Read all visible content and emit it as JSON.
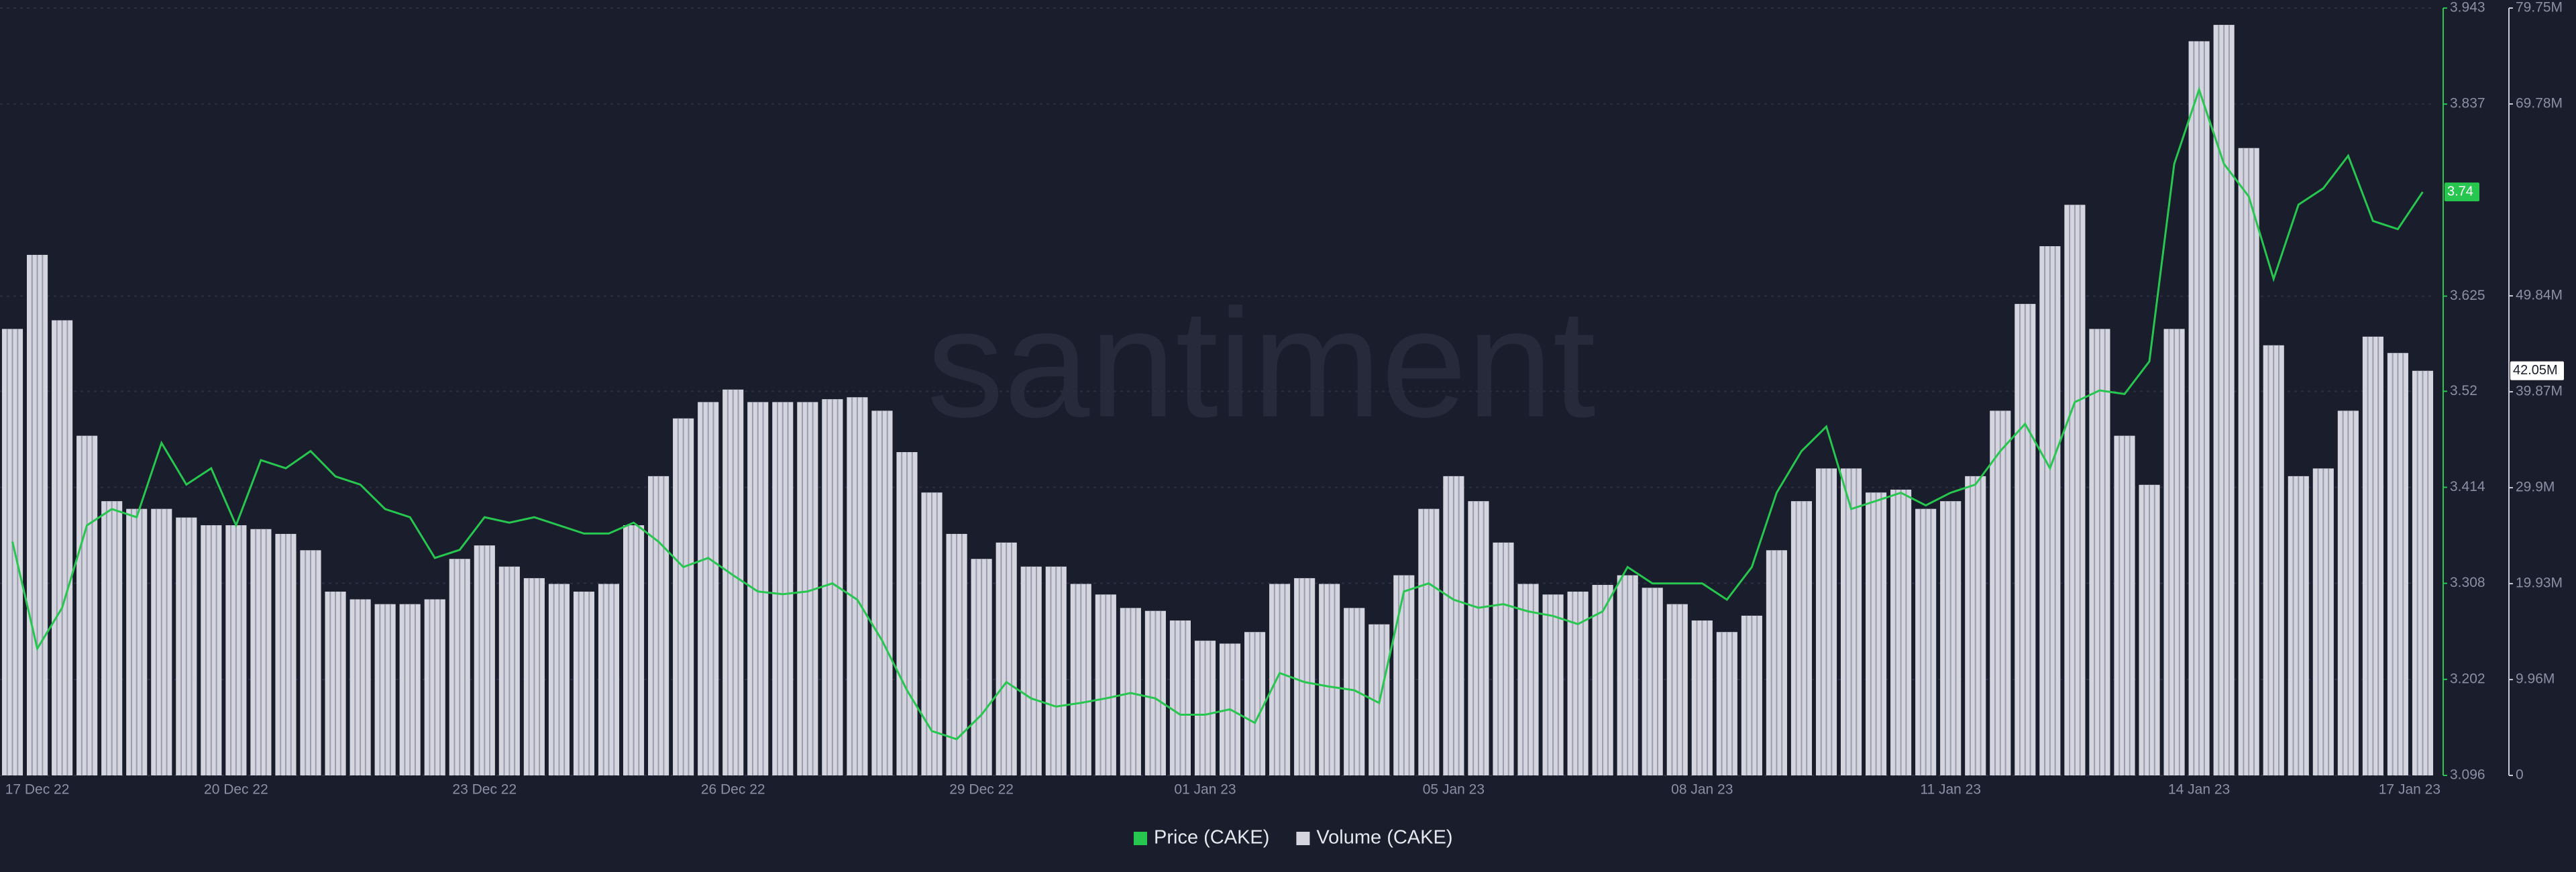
{
  "chart_data": {
    "type": "combo",
    "watermark": "santiment",
    "categories": [
      null,
      "17 Dec 22",
      null,
      null,
      null,
      null,
      null,
      null,
      null,
      "20 Dec 22",
      null,
      null,
      null,
      null,
      null,
      null,
      null,
      null,
      null,
      "23 Dec 22",
      null,
      null,
      null,
      null,
      null,
      null,
      null,
      null,
      null,
      "26 Dec 22",
      null,
      null,
      null,
      null,
      null,
      null,
      null,
      null,
      null,
      "29 Dec 22",
      null,
      null,
      null,
      null,
      null,
      null,
      null,
      null,
      "01 Jan 23",
      null,
      null,
      null,
      null,
      null,
      null,
      null,
      null,
      null,
      "05 Jan 23",
      null,
      null,
      null,
      null,
      null,
      null,
      null,
      null,
      null,
      "08 Jan 23",
      null,
      null,
      null,
      null,
      null,
      null,
      null,
      null,
      null,
      "11 Jan 23",
      null,
      null,
      null,
      null,
      null,
      null,
      null,
      null,
      null,
      "14 Jan 23",
      null,
      null,
      null,
      null,
      null,
      null,
      null,
      null,
      "17 Jan 23"
    ],
    "series": [
      {
        "name": "Price (CAKE)",
        "type": "line",
        "axis": "y",
        "color": "#27c64f",
        "last_label": "3.74",
        "values": [
          3.354,
          3.236,
          3.281,
          3.372,
          3.39,
          3.381,
          3.463,
          3.417,
          3.435,
          3.372,
          3.444,
          3.435,
          3.454,
          3.426,
          3.417,
          3.39,
          3.381,
          3.336,
          3.345,
          3.381,
          3.375,
          3.381,
          3.372,
          3.363,
          3.363,
          3.375,
          3.354,
          3.326,
          3.336,
          3.317,
          3.299,
          3.296,
          3.299,
          3.308,
          3.29,
          3.245,
          3.19,
          3.145,
          3.136,
          3.163,
          3.199,
          3.181,
          3.172,
          3.176,
          3.181,
          3.187,
          3.181,
          3.163,
          3.163,
          3.169,
          3.154,
          3.209,
          3.199,
          3.194,
          3.19,
          3.176,
          3.299,
          3.308,
          3.29,
          3.281,
          3.285,
          3.277,
          3.272,
          3.263,
          3.277,
          3.326,
          3.308,
          3.308,
          3.308,
          3.29,
          3.326,
          3.408,
          3.454,
          3.481,
          3.39,
          3.399,
          3.408,
          3.394,
          3.408,
          3.417,
          3.454,
          3.484,
          3.435,
          3.508,
          3.521,
          3.517,
          3.553,
          3.771,
          3.853,
          3.771,
          3.735,
          3.644,
          3.726,
          3.744,
          3.78,
          3.708,
          3.699,
          3.74
        ]
      },
      {
        "name": "Volume (CAKE)",
        "type": "bar",
        "axis": "y2",
        "color": "#d4d5df",
        "last_label": "42.05M",
        "values": [
          46.4,
          54.1,
          47.3,
          35.3,
          28.5,
          27.7,
          27.7,
          26.8,
          26.0,
          26.0,
          25.6,
          25.1,
          23.4,
          19.1,
          18.3,
          17.8,
          17.8,
          18.3,
          22.5,
          23.9,
          21.7,
          20.5,
          19.9,
          19.1,
          19.9,
          26.0,
          31.1,
          37.1,
          38.8,
          40.1,
          38.8,
          38.8,
          38.8,
          39.1,
          39.3,
          37.9,
          33.6,
          29.4,
          25.1,
          22.5,
          24.2,
          21.7,
          21.7,
          19.9,
          18.8,
          17.4,
          17.1,
          16.1,
          14.0,
          13.7,
          14.9,
          19.9,
          20.5,
          19.9,
          17.4,
          15.7,
          20.8,
          27.7,
          31.1,
          28.5,
          24.2,
          19.9,
          18.8,
          19.1,
          19.8,
          20.8,
          19.5,
          17.8,
          16.1,
          14.9,
          16.6,
          23.4,
          28.5,
          31.9,
          31.9,
          29.4,
          29.7,
          27.7,
          28.5,
          31.1,
          37.9,
          49.0,
          55.0,
          59.3,
          46.4,
          35.3,
          30.2,
          46.4,
          76.3,
          78.0,
          65.2,
          44.7,
          31.1,
          31.9,
          37.9,
          45.6,
          43.9,
          42.05
        ]
      }
    ],
    "ylim": [
      3.096,
      3.943
    ],
    "yticks": [
      3.096,
      3.202,
      3.308,
      3.414,
      3.52,
      3.625,
      3.837,
      3.943
    ],
    "y2lim": [
      0,
      79.75
    ],
    "y2ticks": [
      0,
      {
        "value": 9.96,
        "label": "9.96M"
      },
      {
        "value": 19.93,
        "label": "19.93M"
      },
      {
        "value": 29.9,
        "label": "29.9M"
      },
      {
        "value": 39.87,
        "label": "39.87M"
      },
      {
        "value": 49.84,
        "label": "49.84M"
      },
      {
        "value": 69.78,
        "label": "69.78M"
      },
      {
        "value": 79.75,
        "label": "79.75M"
      }
    ],
    "grid": true,
    "legend": "bottom"
  }
}
